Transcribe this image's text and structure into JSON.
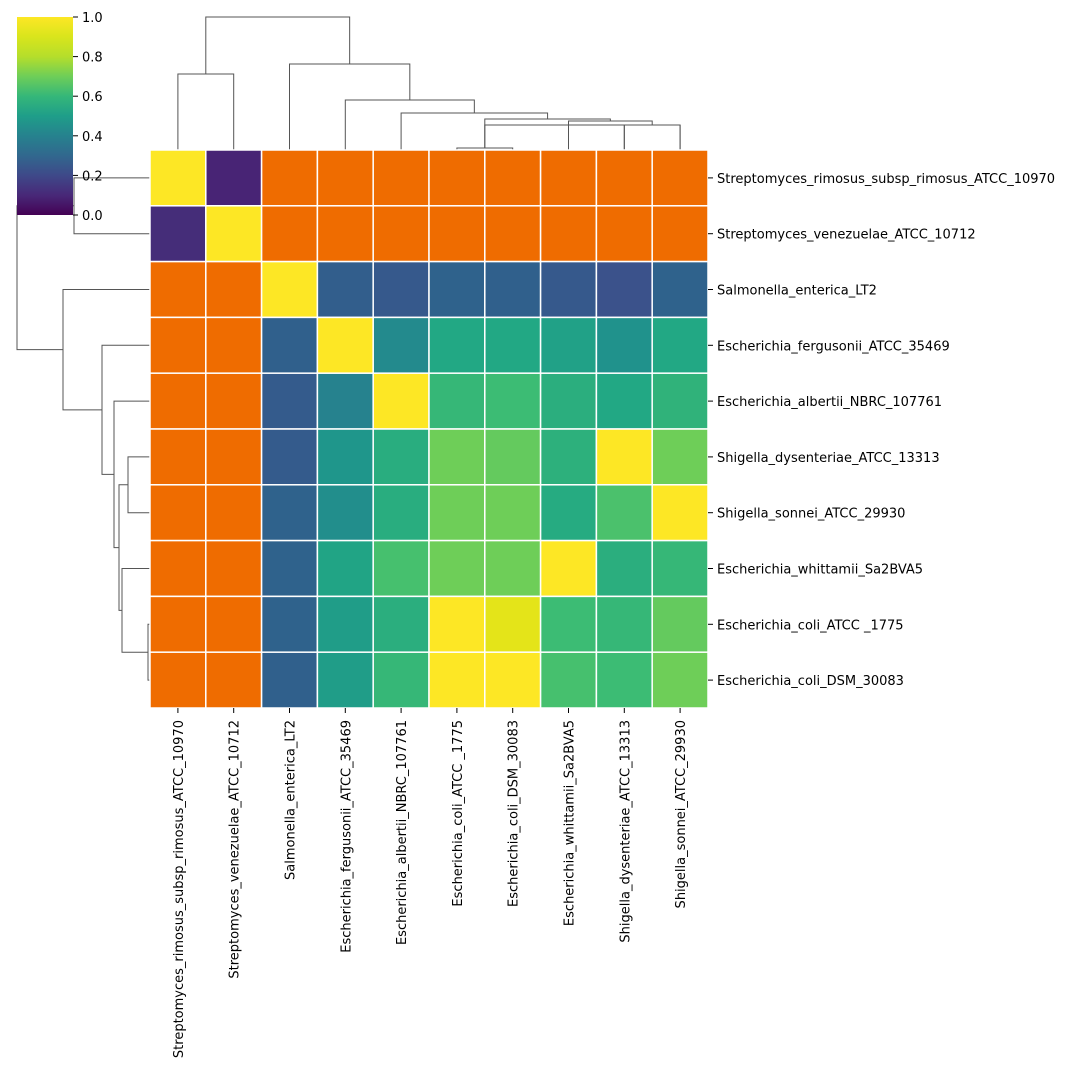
{
  "chart_data": {
    "type": "heatmap",
    "title": "",
    "xlabel": "",
    "ylabel": "",
    "row_labels": [
      "Streptomyces_rimosus_subsp_rimosus_ATCC_10970",
      "Streptomyces_venezuelae_ATCC_10712",
      "Salmonella_enterica_LT2",
      "Escherichia_fergusonii_ATCC_35469",
      "Escherichia_albertii_NBRC_107761",
      "Shigella_dysenteriae_ATCC_13313",
      "Shigella_sonnei_ATCC_29930",
      "Escherichia_whittamii_Sa2BVA5",
      "Escherichia_coli_ATCC _1775",
      "Escherichia_coli_DSM_30083"
    ],
    "col_labels": [
      "Streptomyces_rimosus_subsp_rimosus_ATCC_10970",
      "Streptomyces_venezuelae_ATCC_10712",
      "Salmonella_enterica_LT2",
      "Escherichia_fergusonii_ATCC_35469",
      "Escherichia_albertii_NBRC_107761",
      "Escherichia_coli_ATCC _1775",
      "Escherichia_coli_DSM_30083",
      "Escherichia_whittamii_Sa2BVA5",
      "Shigella_dysenteriae_ATCC_13313",
      "Shigella_sonnei_ATCC_29930"
    ],
    "values": [
      [
        1.0,
        0.17,
        null,
        null,
        null,
        null,
        null,
        null,
        null,
        null
      ],
      [
        0.19,
        1.0,
        null,
        null,
        null,
        null,
        null,
        null,
        null,
        null
      ],
      [
        null,
        null,
        1.0,
        0.32,
        0.3,
        0.34,
        0.33,
        0.3,
        0.27,
        0.34
      ],
      [
        null,
        null,
        0.33,
        1.0,
        0.52,
        0.6,
        0.6,
        0.58,
        0.54,
        0.6
      ],
      [
        null,
        null,
        0.31,
        0.5,
        1.0,
        0.68,
        0.7,
        0.64,
        0.6,
        0.66
      ],
      [
        null,
        null,
        0.31,
        0.55,
        0.63,
        0.8,
        0.78,
        0.65,
        1.0,
        0.8
      ],
      [
        null,
        null,
        0.34,
        0.53,
        0.63,
        0.8,
        0.8,
        0.62,
        0.73,
        1.0
      ],
      [
        null,
        null,
        0.34,
        0.59,
        0.72,
        0.8,
        0.8,
        1.0,
        0.64,
        0.68
      ],
      [
        null,
        null,
        0.34,
        0.57,
        0.64,
        1.0,
        0.94,
        0.7,
        0.68,
        0.78
      ],
      [
        null,
        null,
        0.33,
        0.57,
        0.68,
        1.0,
        1.0,
        0.72,
        0.7,
        0.8
      ]
    ],
    "missing_color": "#ef6c00",
    "grid_line_color": "#ffffff",
    "colormap": "viridis",
    "vmin": 0.0,
    "vmax": 1.0,
    "colorbar": {
      "ticks": [
        "0.0",
        "0.2",
        "0.4",
        "0.6",
        "0.8",
        "1.0"
      ],
      "tick_values": [
        0.0,
        0.2,
        0.4,
        0.6,
        0.8,
        1.0
      ],
      "placement": "top-left"
    },
    "dendrograms": {
      "row": "left",
      "col": "top",
      "line_color": "#555555"
    }
  }
}
